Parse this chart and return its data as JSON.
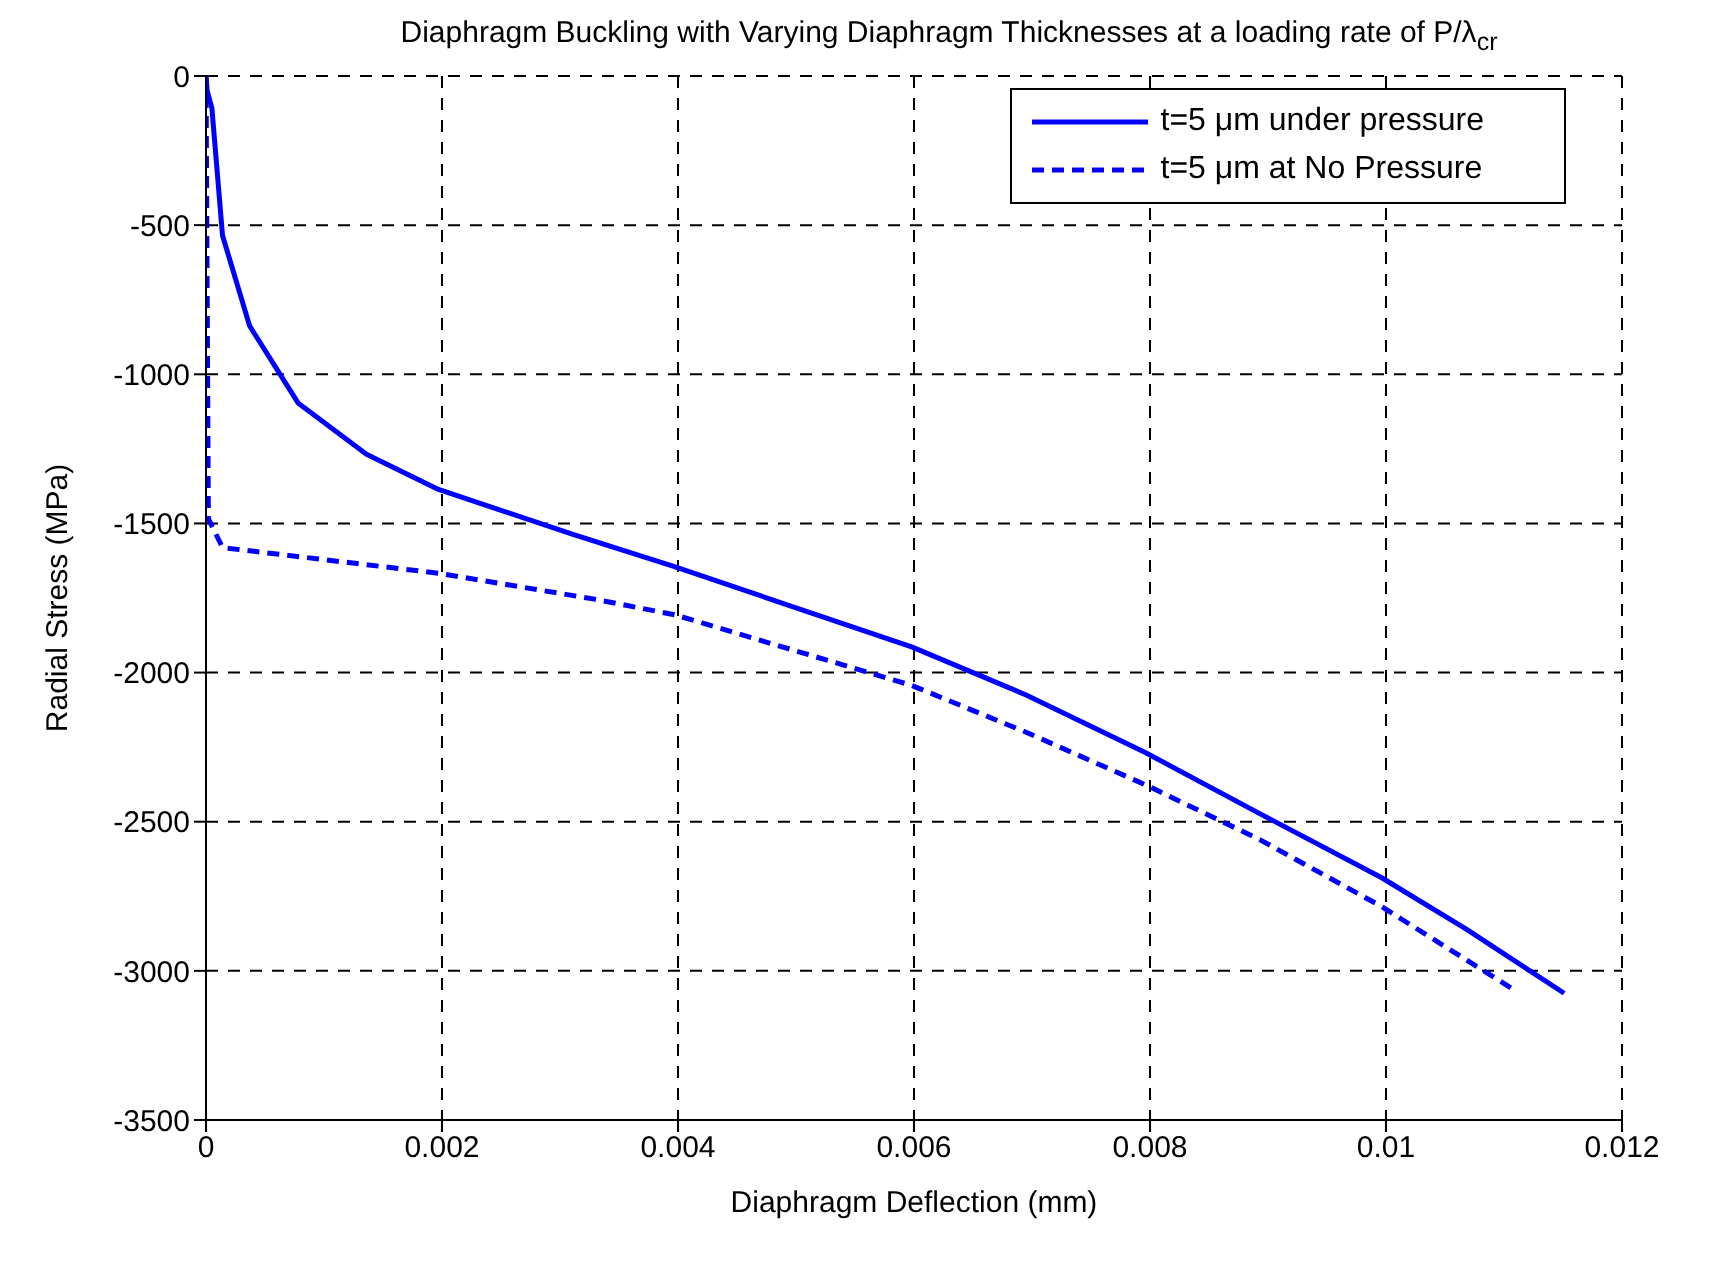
{
  "chart_data": {
    "type": "line",
    "title": "Diaphragm Buckling with Varying Diaphragm Thicknesses at a loading rate of P/λ$_{cr}$",
    "xlabel": "Diaphragm Deflection (mm)",
    "ylabel": "Radial Stress (MPa)",
    "xlim": [
      0,
      0.012
    ],
    "xticks": [
      0,
      0.002,
      0.004,
      0.006,
      0.008,
      0.01,
      0.012
    ],
    "ylim": [
      -3500,
      0
    ],
    "yticks": [
      -3500,
      -3000,
      -2500,
      -2000,
      -1500,
      -1000,
      -500,
      0
    ],
    "grid": true,
    "legend": "top right",
    "marker": "none",
    "series": [
      {
        "name": "t=5 μm under pressure",
        "color": "#0000ff",
        "line_style": "solid",
        "x": [
          0,
          1e-05,
          5e-05,
          0.00014,
          0.00037,
          0.00078,
          0.00136,
          0.00197,
          0.00311,
          0.00397,
          0.00598,
          0.00695,
          0.00796,
          0.00893,
          0.00996,
          0.01068,
          0.01151
        ],
        "values": [
          0,
          -50,
          -108,
          -535,
          -838,
          -1096,
          -1268,
          -1386,
          -1537,
          -1645,
          -1914,
          -2075,
          -2268,
          -2473,
          -2687,
          -2860,
          -3075
        ]
      },
      {
        "name": "t=5 μm at No Pressure",
        "color": "#0000ff",
        "line_style": "dashed",
        "x": [
          0,
          2e-05,
          0.00014,
          0.00197,
          0.00328,
          0.00397,
          0.00598,
          0.00695,
          0.00796,
          0.00893,
          0.00996,
          0.01111
        ],
        "values": [
          0,
          -1484,
          -1581,
          -1667,
          -1753,
          -1806,
          -2043,
          -2200,
          -2376,
          -2560,
          -2784,
          -3070
        ]
      }
    ]
  }
}
